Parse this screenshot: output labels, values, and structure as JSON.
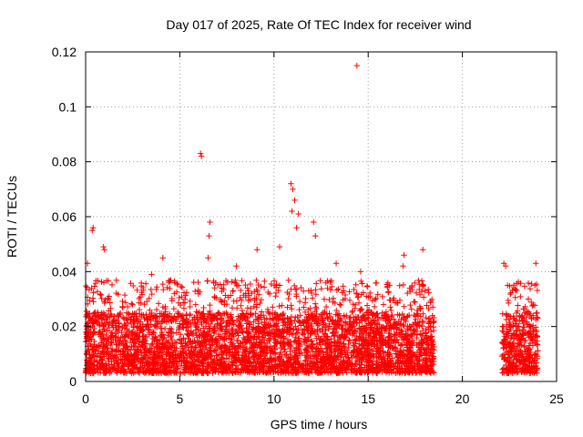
{
  "chart_data": {
    "type": "scatter",
    "title": "Day 017 of 2025, Rate Of TEC Index for receiver wind",
    "xlabel": "GPS time / hours",
    "ylabel": "ROTI / TECUs",
    "xlim": [
      0,
      25
    ],
    "ylim": [
      0,
      0.12
    ],
    "x_ticks": [
      "0",
      "5",
      "10",
      "15",
      "20",
      "25"
    ],
    "y_ticks": [
      "0",
      "0.02",
      "0.04",
      "0.06",
      "0.08",
      "0.1",
      "0.12"
    ],
    "grid": true,
    "marker": "plus",
    "series_color": "#ff0000",
    "data_segments": [
      {
        "x_range": [
          0.0,
          18.5
        ],
        "typical_range": [
          0.003,
          0.025
        ]
      },
      {
        "x_range": [
          22.1,
          24.0
        ],
        "typical_range": [
          0.003,
          0.025
        ]
      }
    ],
    "notable_points": [
      {
        "x": 0.1,
        "y": 0.043
      },
      {
        "x": 0.35,
        "y": 0.055
      },
      {
        "x": 0.4,
        "y": 0.056
      },
      {
        "x": 0.95,
        "y": 0.049
      },
      {
        "x": 1.0,
        "y": 0.048
      },
      {
        "x": 3.5,
        "y": 0.039
      },
      {
        "x": 4.1,
        "y": 0.045
      },
      {
        "x": 6.1,
        "y": 0.083
      },
      {
        "x": 6.15,
        "y": 0.082
      },
      {
        "x": 6.6,
        "y": 0.058
      },
      {
        "x": 6.55,
        "y": 0.053
      },
      {
        "x": 6.5,
        "y": 0.045
      },
      {
        "x": 8.0,
        "y": 0.042
      },
      {
        "x": 9.1,
        "y": 0.048
      },
      {
        "x": 10.3,
        "y": 0.049
      },
      {
        "x": 10.9,
        "y": 0.072
      },
      {
        "x": 11.0,
        "y": 0.07
      },
      {
        "x": 11.1,
        "y": 0.066
      },
      {
        "x": 10.95,
        "y": 0.062
      },
      {
        "x": 11.3,
        "y": 0.061
      },
      {
        "x": 11.2,
        "y": 0.056
      },
      {
        "x": 12.1,
        "y": 0.058
      },
      {
        "x": 12.2,
        "y": 0.053
      },
      {
        "x": 13.3,
        "y": 0.043
      },
      {
        "x": 14.4,
        "y": 0.115
      },
      {
        "x": 14.6,
        "y": 0.04
      },
      {
        "x": 16.9,
        "y": 0.046
      },
      {
        "x": 16.85,
        "y": 0.042
      },
      {
        "x": 17.9,
        "y": 0.048
      },
      {
        "x": 22.2,
        "y": 0.043
      },
      {
        "x": 22.3,
        "y": 0.042
      },
      {
        "x": 22.4,
        "y": 0.035
      },
      {
        "x": 23.5,
        "y": 0.03
      },
      {
        "x": 23.9,
        "y": 0.043
      },
      {
        "x": 23.85,
        "y": 0.035
      }
    ]
  }
}
